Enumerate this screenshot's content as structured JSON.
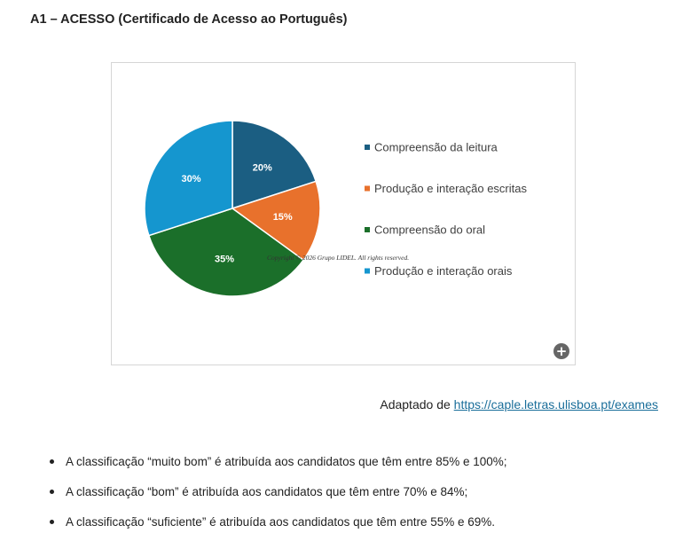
{
  "heading": "A1 – ACESSO (Certificado de Acesso ao Português)",
  "chart_data": {
    "type": "pie",
    "title": "",
    "series": [
      {
        "name": "Compreensão da leitura",
        "value": 20,
        "label": "20%",
        "color": "#1B5E82"
      },
      {
        "name": "Produção e interação escritas",
        "value": 15,
        "label": "15%",
        "color": "#E8712C"
      },
      {
        "name": "Compreensão do oral",
        "value": 35,
        "label": "35%",
        "color": "#1B6F2A"
      },
      {
        "name": "Produção e interação orais",
        "value": 30,
        "label": "30%",
        "color": "#1596CF"
      }
    ],
    "legend_position": "right",
    "watermark": "Copyright © 2026 Grupo LIDEL. All rights reserved."
  },
  "expand_icon": "plus-circle-icon",
  "attribution": {
    "prefix": "Adaptado de ",
    "link_text": "https://caple.letras.ulisboa.pt/exames"
  },
  "bullets": [
    "A classificação “muito bom” é atribuída aos candidatos que têm entre 85% e 100%;",
    "A classificação “bom” é atribuída aos candidatos que têm entre 70% e 84%;",
    "A classificação “suficiente” é atribuída aos candidatos que têm entre 55% e 69%."
  ]
}
